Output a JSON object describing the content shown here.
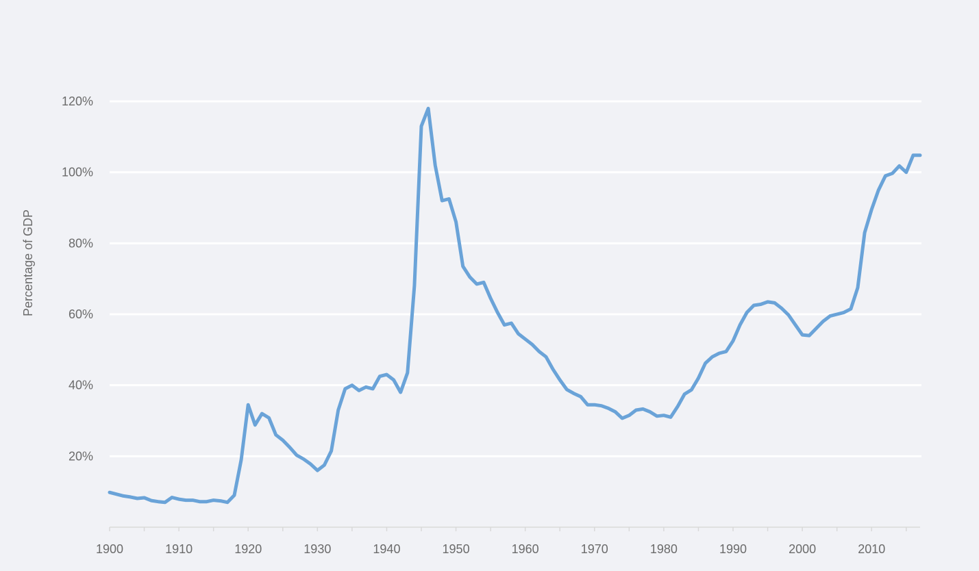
{
  "chart_data": {
    "type": "line",
    "title": "",
    "xlabel": "",
    "ylabel": "Percentage of GDP",
    "xlim": [
      1900,
      2017
    ],
    "ylim": [
      0,
      120
    ],
    "x_ticks": [
      1900,
      1910,
      1920,
      1930,
      1940,
      1950,
      1960,
      1970,
      1980,
      1990,
      2000,
      2010
    ],
    "y_ticks": [
      20,
      40,
      60,
      80,
      100,
      120
    ],
    "y_tick_labels": [
      "20%",
      "40%",
      "60%",
      "80%",
      "100%",
      "120%"
    ],
    "grid": true,
    "legend": "none",
    "line_color": "#6aa3d8",
    "series": [
      {
        "x": [
          1900,
          1901,
          1902,
          1903,
          1904,
          1905,
          1906,
          1907,
          1908,
          1909,
          1910,
          1911,
          1912,
          1913,
          1914,
          1915,
          1916,
          1917,
          1918,
          1919,
          1920,
          1921,
          1922,
          1923,
          1924,
          1925,
          1926,
          1927,
          1928,
          1929,
          1930,
          1931,
          1932,
          1933,
          1934,
          1935,
          1936,
          1937,
          1938,
          1939,
          1940,
          1941,
          1942,
          1943,
          1944,
          1945,
          1946,
          1947,
          1948,
          1949,
          1950,
          1951,
          1952,
          1953,
          1954,
          1955,
          1956,
          1957,
          1958,
          1959,
          1960,
          1961,
          1962,
          1963,
          1964,
          1965,
          1966,
          1967,
          1968,
          1969,
          1970,
          1971,
          1972,
          1973,
          1974,
          1975,
          1976,
          1977,
          1978,
          1979,
          1980,
          1981,
          1982,
          1983,
          1984,
          1985,
          1986,
          1987,
          1988,
          1989,
          1990,
          1991,
          1992,
          1993,
          1994,
          1995,
          1996,
          1997,
          1998,
          1999,
          2000,
          2001,
          2002,
          2003,
          2004,
          2005,
          2006,
          2007,
          2008,
          2009,
          2010,
          2011,
          2012,
          2013,
          2014,
          2015,
          2016,
          2017
        ],
        "values": [
          9.8,
          9.3,
          8.8,
          8.5,
          8.1,
          8.3,
          7.5,
          7.2,
          7.0,
          8.4,
          7.9,
          7.6,
          7.6,
          7.2,
          7.2,
          7.6,
          7.4,
          7.0,
          9.0,
          19,
          34.5,
          28.8,
          32,
          30.8,
          26,
          24.5,
          22.5,
          20.3,
          19.2,
          17.8,
          16,
          17.5,
          21.5,
          33,
          39,
          40,
          38.5,
          39.5,
          39,
          42.5,
          43,
          41.5,
          38,
          43.5,
          68,
          113,
          118,
          102,
          92,
          92.5,
          86,
          73.5,
          70.5,
          68.5,
          69,
          64.5,
          60.5,
          57,
          57.5,
          54.5,
          53,
          51.5,
          49.5,
          48,
          44.5,
          41.5,
          38.8,
          37.7,
          36.8,
          34.5,
          34.5,
          34.2,
          33.5,
          32.5,
          30.7,
          31.5,
          33,
          33.3,
          32.5,
          31.3,
          31.5,
          31,
          34,
          37.5,
          38.7,
          42,
          46.2,
          48,
          49,
          49.5,
          52.5,
          57,
          60.5,
          62.5,
          62.8,
          63.5,
          63.2,
          61.7,
          59.8,
          57,
          54.2,
          54,
          56,
          58,
          59.5,
          60,
          60.5,
          61.5,
          67.5,
          83,
          89.5,
          95,
          99,
          99.7,
          101.8,
          100,
          104.8,
          104.8
        ]
      }
    ]
  }
}
